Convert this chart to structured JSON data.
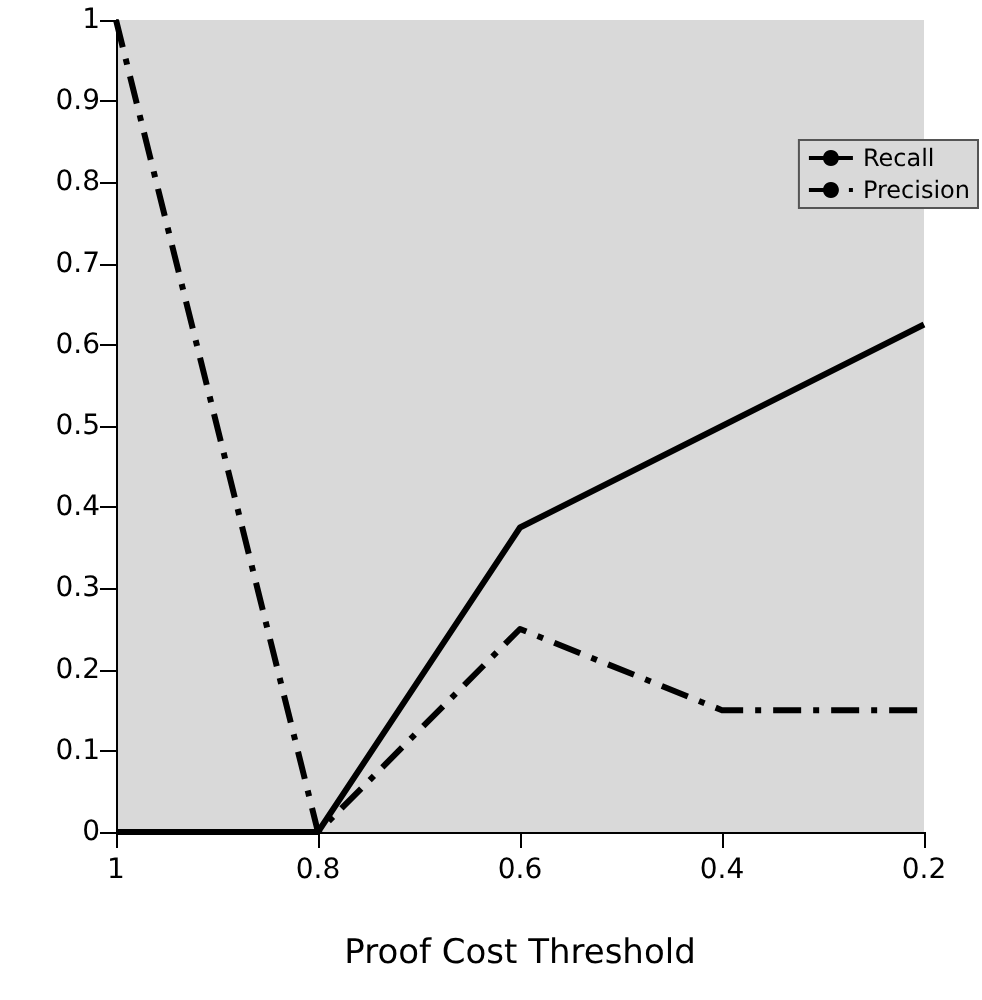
{
  "chart_data": {
    "type": "line",
    "xlabel": "Proof Cost Threshold",
    "x": [
      1,
      0.8,
      0.6,
      0.4,
      0.2
    ],
    "series": [
      {
        "name": "Recall",
        "color": "#000000",
        "values": [
          0,
          0,
          0.375,
          0.5,
          0.625
        ],
        "line_style": "solid"
      },
      {
        "name": "Precision",
        "color": "#000000",
        "values": [
          1,
          0,
          0.25,
          0.15,
          0.15
        ],
        "line_style": "dashed"
      }
    ],
    "xlim": [
      1,
      0.2
    ],
    "xticks": [
      1,
      0.8,
      0.6,
      0.4,
      0.2
    ],
    "ylim": [
      0,
      1
    ],
    "yticks": [
      0,
      0.1,
      0.2,
      0.3,
      0.4,
      0.5,
      0.6,
      0.7,
      0.8,
      0.9,
      1
    ],
    "grid": false,
    "legend": "top right",
    "marker": "none"
  }
}
